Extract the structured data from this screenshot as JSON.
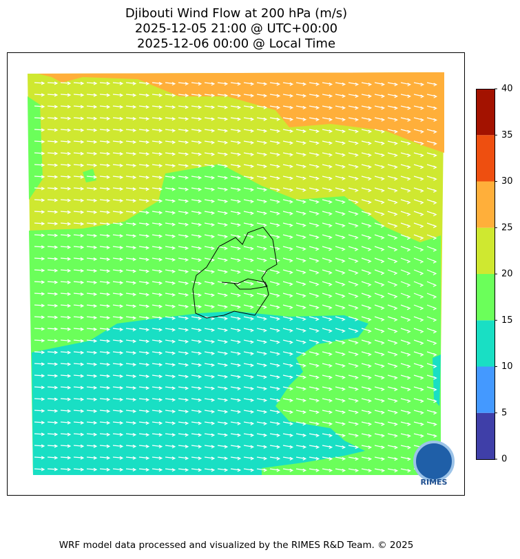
{
  "title_lines": [
    "Djibouti Wind Flow at 200 hPa (m/s)",
    "2025-12-05 21:00 @ UTC+00:00",
    "2025-12-06 00:00 @ Local Time"
  ],
  "colorbar": {
    "bounds": [
      0,
      5,
      10,
      15,
      20,
      25,
      30,
      35,
      40
    ],
    "colors": [
      "#3f3fa8",
      "#4499ff",
      "#19dfc4",
      "#6bff5a",
      "#cfe830",
      "#ffaf3a",
      "#ee4f10",
      "#a31200"
    ],
    "ticks": [
      0,
      5,
      10,
      15,
      20,
      25,
      30,
      35,
      40
    ]
  },
  "logo": "RIMES",
  "footer": "WRF model data processed and visualized by the RIMES R&D Team. © 2025"
}
